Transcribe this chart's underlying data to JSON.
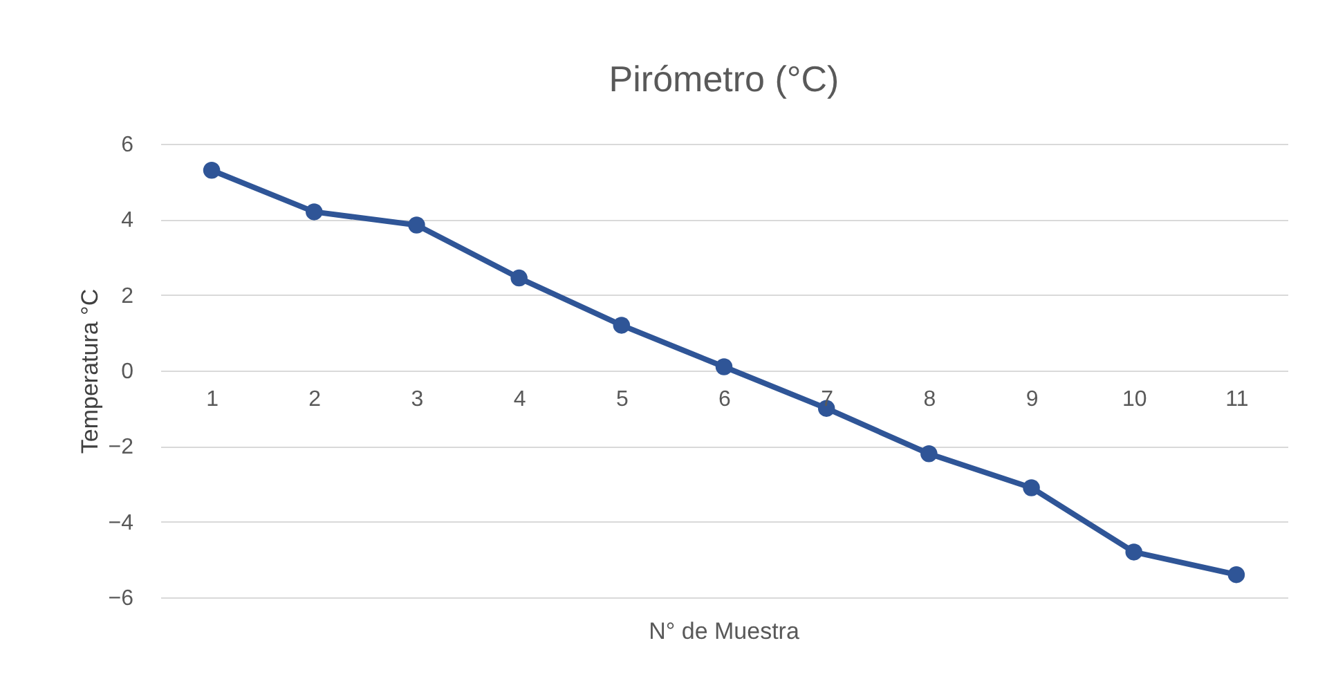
{
  "chart_data": {
    "type": "line",
    "title": "Pirómetro (°C)",
    "xlabel": "N° de Muestra",
    "ylabel": "Temperatura °C",
    "categories": [
      "1",
      "2",
      "3",
      "4",
      "5",
      "6",
      "7",
      "8",
      "9",
      "10",
      "11"
    ],
    "series": [
      {
        "color": "#2f5597",
        "values": [
          5.3,
          4.2,
          3.85,
          2.45,
          1.2,
          0.1,
          -1.0,
          -2.2,
          -3.1,
          -4.8,
          -5.4
        ]
      }
    ],
    "ylim": [
      -6,
      6
    ],
    "yticks": [
      -6,
      -4,
      -2,
      0,
      2,
      4,
      6
    ],
    "grid": "y",
    "marker": "circle",
    "line_style": "solid"
  }
}
